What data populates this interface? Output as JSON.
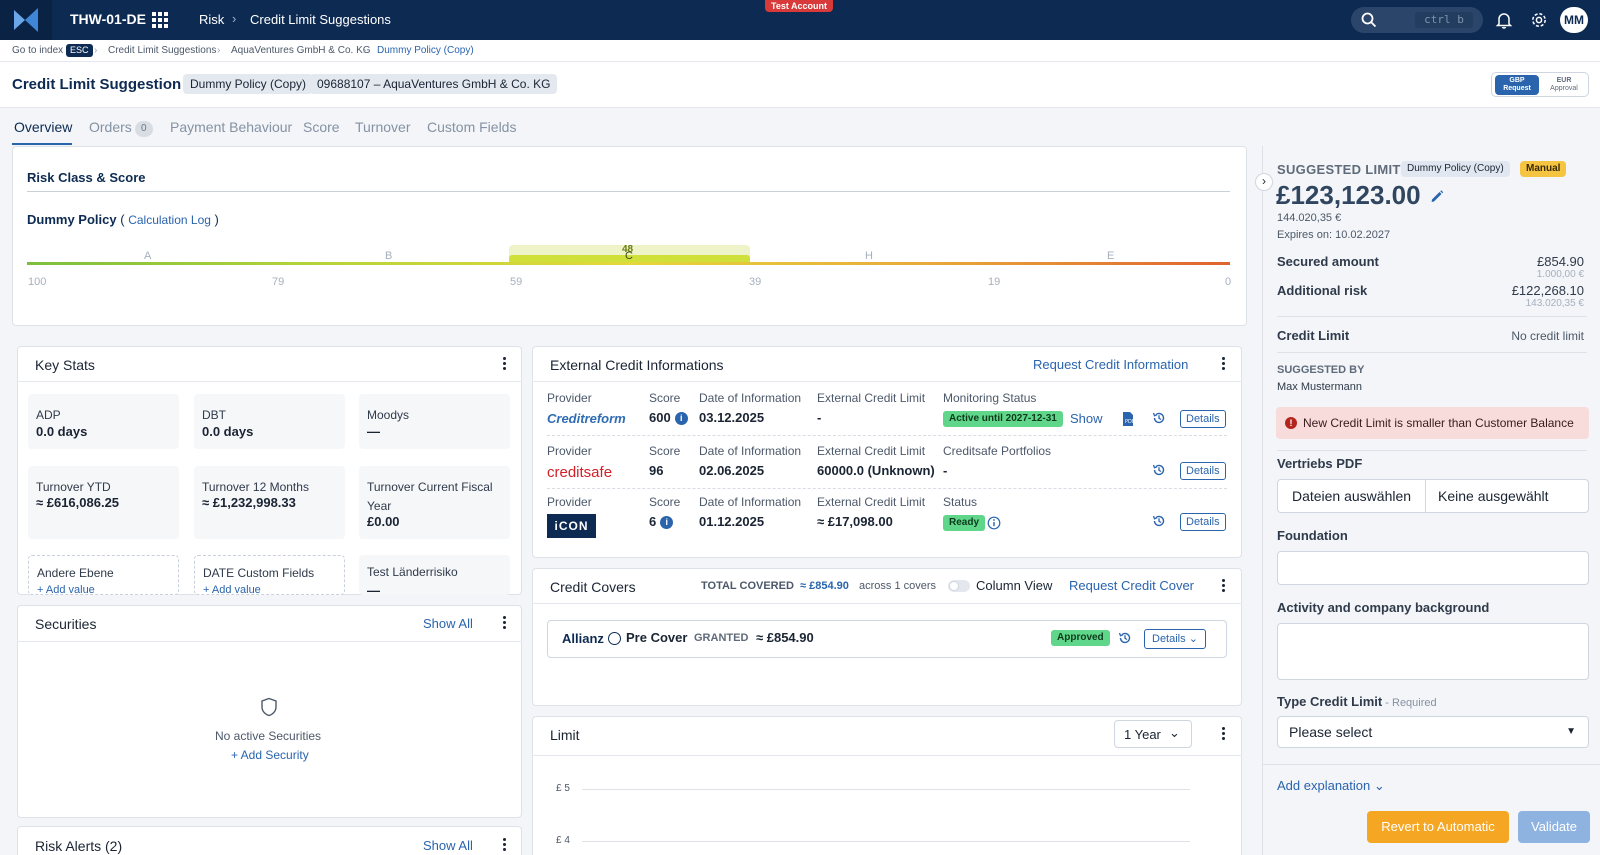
{
  "topbar": {
    "tenant": "THW-01-DE",
    "crumb_risk": "Risk",
    "crumb_page": "Credit Limit Suggestions",
    "test_badge": "Test Account",
    "search_shortcut": "ctrl b",
    "avatar": "MM",
    "icons": [
      "logo-icon",
      "apps-grid-icon",
      "search-icon",
      "bell-icon",
      "gear-icon"
    ]
  },
  "breadcrumb": {
    "index": "Go to index",
    "esc": "ESC",
    "items": [
      "Credit Limit Suggestions",
      "AquaVentures GmbH & Co. KG",
      "Dummy Policy (Copy)"
    ]
  },
  "header": {
    "title": "Credit Limit Suggestion",
    "policy_chip": "Dummy Policy (Copy)",
    "customer_chip": "09688107 – AquaVentures GmbH & Co. KG",
    "currency_a_code": "GBP",
    "currency_a_label": "Request",
    "currency_b_code": "EUR",
    "currency_b_label": "Approval"
  },
  "tabs": [
    {
      "label": "Overview",
      "active": true
    },
    {
      "label": "Orders",
      "badge": "0"
    },
    {
      "label": "Payment Behaviour"
    },
    {
      "label": "Score"
    },
    {
      "label": "Turnover"
    },
    {
      "label": "Custom Fields"
    }
  ],
  "risk": {
    "title": "Risk Class & Score",
    "policy": "Dummy Policy",
    "calc_log": "Calculation Log",
    "paren_open": "(",
    "paren_close": ")",
    "score": "48",
    "active_class": "C",
    "bands": [
      "A",
      "B",
      "C",
      "H",
      "E"
    ],
    "ticks": [
      "100",
      "79",
      "59",
      "39",
      "19",
      "0"
    ]
  },
  "keystats": {
    "title": "Key Stats",
    "tiles": [
      {
        "label": "ADP",
        "value": "0.0 days"
      },
      {
        "label": "DBT",
        "value": "0.0 days"
      },
      {
        "label": "Moodys",
        "value": "—"
      },
      {
        "label": "Turnover YTD",
        "value": "≈ £616,086.25"
      },
      {
        "label": "Turnover 12 Months",
        "value": "≈ £1,232,998.33"
      },
      {
        "label": "Turnover Current Fiscal Year",
        "value": "£0.00"
      },
      {
        "label": "Andere Ebene",
        "action": "+ Add value"
      },
      {
        "label": "DATE Custom Fields",
        "action": "+ Add value"
      },
      {
        "label": "Test Länderrisiko",
        "value": "—"
      }
    ]
  },
  "securities": {
    "title": "Securities",
    "show_all": "Show All",
    "empty": "No active Securities",
    "add": "+ Add Security"
  },
  "risk_alerts": {
    "title": "Risk Alerts (2)",
    "show_all": "Show All"
  },
  "external": {
    "title": "External Credit Informations",
    "request": "Request Credit Information",
    "rows": [
      {
        "provider_label": "Provider",
        "provider": "Creditreform",
        "score_label": "Score",
        "score": "600",
        "date_label": "Date of Information",
        "date": "03.12.2025",
        "limit_label": "External Credit Limit",
        "limit": "-",
        "status_label": "Monitoring Status",
        "status": "Active until 2027-12-31",
        "show": "Show",
        "details": "Details"
      },
      {
        "provider_label": "Provider",
        "provider": "creditsafe",
        "score_label": "Score",
        "score": "96",
        "date_label": "Date of Information",
        "date": "02.06.2025",
        "limit_label": "External Credit Limit",
        "limit": "60000.0 (Unknown)",
        "status_label": "Creditsafe Portfolios",
        "status": "-",
        "details": "Details"
      },
      {
        "provider_label": "Provider",
        "provider": "iCON",
        "score_label": "Score",
        "score": "6",
        "date_label": "Date of Information",
        "date": "01.12.2025",
        "limit_label": "External Credit Limit",
        "limit": "≈ £17,098.00",
        "status_label": "Status",
        "status": "Ready",
        "details": "Details"
      }
    ]
  },
  "covers": {
    "title": "Credit Covers",
    "total_label": "TOTAL COVERED",
    "total": "≈ £854.90",
    "across": "across 1 covers",
    "column_view": "Column View",
    "request": "Request Credit Cover",
    "insurer": "Allianz",
    "type": "Pre Cover",
    "granted": "GRANTED",
    "amount": "≈ £854.90",
    "status": "Approved",
    "details": "Details"
  },
  "limit_chart": {
    "title": "Limit",
    "range": "1 Year",
    "y_ticks": [
      "£ 5",
      "£ 4"
    ]
  },
  "suggested": {
    "title": "SUGGESTED LIMIT",
    "policy": "Dummy Policy (Copy)",
    "mode": "Manual",
    "amount": "£123,123.00",
    "amount_eur": "144.020,35 €",
    "expires": "Expires on: 10.02.2027",
    "secured_label": "Secured amount",
    "secured": "£854.90",
    "secured_eur": "1.000,00 €",
    "additional_label": "Additional risk",
    "additional": "£122,268.10",
    "additional_eur": "143.020,35 €",
    "credit_limit_label": "Credit Limit",
    "credit_limit": "No credit limit",
    "suggested_by_label": "SUGGESTED BY",
    "suggested_by": "Max Mustermann",
    "warning": "New Credit Limit is smaller than Customer Balance",
    "vertriebs_label": "Vertriebs PDF",
    "file_button": "Dateien auswählen",
    "file_none": "Keine ausgewählt",
    "foundation_label": "Foundation",
    "activity_label": "Activity and company background",
    "type_label": "Type Credit Limit",
    "required": " - Required",
    "type_placeholder": "Please select",
    "add_explanation": "Add explanation",
    "revert": "Revert to Automatic",
    "validate": "Validate"
  },
  "colors": {
    "navy": "#0d2b52",
    "accent": "#2a64ad",
    "orange": "#f5a623",
    "green": "#5fd68a",
    "warning_bg": "#f8dcdc"
  }
}
